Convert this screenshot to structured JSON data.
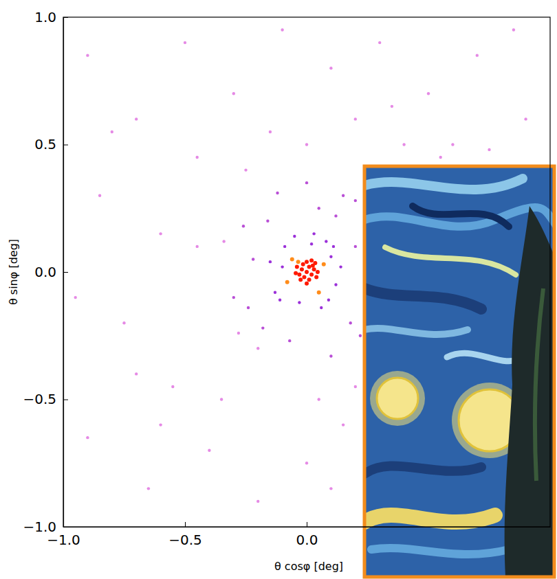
{
  "chart_data": {
    "type": "scatter",
    "x_label": "θ cosφ [deg]",
    "y_label": "θ sinφ [deg]",
    "x": [
      0,
      0.01,
      -0.02,
      0.02,
      -0.01,
      0.03,
      -0.03,
      0.01,
      -0.015,
      0.025,
      -0.025,
      0.04,
      -0.04,
      0.0,
      0.0,
      0.035,
      -0.035,
      0.045,
      -0.045,
      0.02,
      0.07,
      -0.06,
      0.05,
      -0.08,
      0.1,
      -0.1,
      0.02,
      -0.03,
      0.12,
      -0.09,
      0.08,
      -0.13,
      0.14,
      -0.05,
      0.06,
      -0.11,
      0.11,
      -0.15,
      0.03,
      0.09,
      0.2,
      -0.22,
      0.18,
      -0.18,
      0.05,
      -0.07,
      -0.16,
      -0.26,
      0.15,
      -0.3,
      0.22,
      -0.12,
      0.12,
      -0.2,
      0.1,
      -0.34,
      -0.24,
      -0.28,
      0.0,
      0.2,
      -0.9,
      -0.7,
      -0.5,
      -0.3,
      -0.1,
      0.1,
      0.3,
      0.5,
      0.7,
      0.9,
      -0.85,
      -0.6,
      -0.75,
      -0.55,
      -0.9,
      -0.65,
      -0.4,
      -0.2,
      0.0,
      0.15,
      -0.45,
      0.4,
      0.6,
      0.85,
      -0.95,
      0.2,
      -0.15,
      0.55,
      -0.35,
      0.1,
      -0.8,
      0.75,
      -0.25,
      0.35,
      -0.6,
      0.05,
      -0.45,
      0.0,
      -0.7,
      0.2
    ],
    "values": [
      0,
      0.02,
      0.01,
      -0.01,
      -0.02,
      0.01,
      -0.01,
      -0.03,
      0.03,
      0.025,
      -0.03,
      -0.02,
      0.02,
      0.04,
      -0.045,
      0.035,
      0.04,
      0.0,
      -0.005,
      0.045,
      0.03,
      0.05,
      -0.08,
      -0.04,
      0.06,
      0.02,
      0.11,
      -0.12,
      -0.05,
      0.1,
      0.12,
      -0.08,
      0.02,
      0.14,
      -0.14,
      -0.11,
      0.1,
      0.04,
      0.15,
      -0.11,
      0.1,
      0.05,
      -0.2,
      -0.22,
      0.25,
      -0.27,
      0.2,
      0.18,
      0.3,
      -0.1,
      -0.25,
      0.31,
      0.22,
      -0.3,
      -0.33,
      0.12,
      -0.14,
      -0.24,
      0.35,
      0.28,
      0.85,
      0.6,
      0.9,
      0.7,
      0.95,
      0.8,
      0.9,
      0.7,
      0.85,
      0.6,
      0.3,
      0.15,
      -0.2,
      -0.45,
      -0.65,
      -0.85,
      -0.7,
      -0.9,
      -0.75,
      -0.6,
      0.45,
      0.5,
      0.5,
      0.95,
      -0.1,
      0.6,
      0.55,
      0.45,
      -0.5,
      -0.85,
      0.55,
      0.48,
      0.4,
      0.65,
      -0.6,
      -0.5,
      0.1,
      0.5,
      -0.4,
      -0.45
    ],
    "xlim": [
      -1,
      1
    ],
    "ylim": [
      -1,
      1
    ],
    "xticks": [
      {
        "value": -1,
        "label": "−1.0"
      },
      {
        "value": -0.5,
        "label": "−0.5"
      },
      {
        "value": 0,
        "label": "0.0"
      }
    ],
    "yticks": [
      {
        "value": -1,
        "label": "−1.0"
      },
      {
        "value": -0.5,
        "label": "−0.5"
      },
      {
        "value": 0,
        "label": "0.0"
      },
      {
        "value": 0.5,
        "label": "0.5"
      },
      {
        "value": 1,
        "label": "1.0"
      }
    ]
  }
}
